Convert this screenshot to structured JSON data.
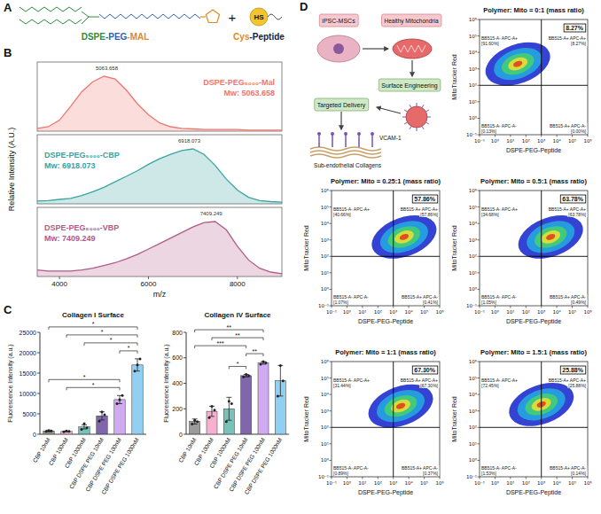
{
  "panel_labels": [
    "A",
    "B",
    "C",
    "D"
  ],
  "scheme_a": {
    "reagent_parts": [
      "DSPE",
      "-PEG",
      "-MAL"
    ],
    "plus": "+",
    "peptide_parts": [
      "Cys",
      "-Peptide"
    ],
    "thiol": "HS"
  },
  "diagram_d": {
    "cell": "iPSC-MSCs",
    "organelle": "Healthy Mitochondria",
    "engineering": "Surface Engineering",
    "delivery": "Targeted Delivery",
    "receptor": "VCAM-1",
    "substrate": "Sub-endothelial Collagens"
  },
  "chart_data": [
    {
      "type": "line",
      "x_label": "m/z",
      "y_label": "Relative Intensity (A.U.)",
      "xlim": [
        3500,
        9000
      ],
      "xticks": [
        4000,
        6000,
        8000
      ],
      "ylim": [
        0,
        1
      ],
      "tick_labels": "x",
      "x": [
        3500,
        3750,
        4000,
        4250,
        4500,
        4750,
        5000,
        5250,
        5500,
        5750,
        6000,
        6250,
        6500,
        6750,
        7000,
        7250,
        7500,
        7750,
        8000,
        8250,
        8500,
        8750,
        9000
      ],
      "series": [
        {
          "name": "DSPE-PEG₅₀₀₀-Mal",
          "color": "#f0766e",
          "mw_label": "Mw: 5063.658",
          "peak": 5063.658,
          "values": [
            0.05,
            0.08,
            0.2,
            0.45,
            0.72,
            0.9,
            1.0,
            0.95,
            0.75,
            0.5,
            0.3,
            0.15,
            0.08,
            0.05,
            0.04,
            0.03,
            0.03,
            0.03,
            0.03,
            0.02,
            0.02,
            0.02,
            0.02
          ]
        },
        {
          "name": "DSPE-PEG₅₀₀₀-CBP",
          "color": "#3aa3a3",
          "mw_label": "Mw: 6918.073",
          "peak": 6918.073,
          "values": [
            0.05,
            0.06,
            0.08,
            0.1,
            0.15,
            0.22,
            0.3,
            0.4,
            0.5,
            0.6,
            0.72,
            0.82,
            0.9,
            0.97,
            1.0,
            0.9,
            0.7,
            0.45,
            0.25,
            0.12,
            0.06,
            0.04,
            0.03
          ]
        },
        {
          "name": "DSPE-PEG₅₀₀₀-VBP",
          "color": "#b05a8a",
          "mw_label": "Mw: 7409.249",
          "peak": 7409.249,
          "values": [
            0.12,
            0.1,
            0.1,
            0.1,
            0.12,
            0.15,
            0.2,
            0.25,
            0.32,
            0.4,
            0.5,
            0.6,
            0.7,
            0.8,
            0.9,
            0.98,
            1.0,
            0.85,
            0.55,
            0.3,
            0.15,
            0.08,
            0.05
          ]
        }
      ]
    },
    {
      "type": "bar",
      "title": "Collagen I Surface",
      "y_label": "Fluorescence Intensity (a.u.)",
      "categories": [
        "CBP 10nM",
        "CBP 100nM",
        "CBP 1000nM",
        "CBP DSPE PEG 10nM",
        "CBP DSPE PEG 100nM",
        "CBP DSPE PEG 1000nM"
      ],
      "values": [
        800,
        700,
        1800,
        4500,
        8500,
        17000
      ],
      "errors": [
        200,
        100,
        500,
        1000,
        1000,
        1500
      ],
      "points": [
        [
          700,
          900,
          800
        ],
        [
          600,
          800,
          700
        ],
        [
          1200,
          2600,
          1600
        ],
        [
          3200,
          5500,
          4800
        ],
        [
          7500,
          8500,
          9500
        ],
        [
          15500,
          17000,
          18500
        ]
      ],
      "colors": [
        "#8a8a8a",
        "#f4a3c8",
        "#5fb8b0",
        "#6a4c9c",
        "#c89cf0",
        "#7ec8f0"
      ],
      "ylim": [
        0,
        25000
      ],
      "yticks": [
        0,
        5000,
        10000,
        15000,
        20000,
        25000
      ],
      "significance": [
        {
          "from": "CBP 100nM",
          "to": "CBP DSPE PEG 100nM",
          "label": "*"
        },
        {
          "from": "CBP 10nM",
          "to": "CBP DSPE PEG 100nM",
          "label": "*"
        },
        {
          "from": "CBP DSPE PEG 100nM",
          "to": "CBP DSPE PEG 1000nM",
          "label": "*"
        },
        {
          "from": "CBP 1000nM",
          "to": "CBP DSPE PEG 1000nM",
          "label": "*"
        },
        {
          "from": "CBP 100nM",
          "to": "CBP DSPE PEG 1000nM",
          "label": "*"
        },
        {
          "from": "CBP 10nM",
          "to": "CBP DSPE PEG 1000nM",
          "label": "*"
        }
      ]
    },
    {
      "type": "bar",
      "title": "Collagen IV Surface",
      "y_label": "Fluorescence Intensity (a.u.)",
      "categories": [
        "CBP 10nM",
        "CBP 100nM",
        "CBP 1000nM",
        "CBP DSPE PEG 10nM",
        "CBP DSPE PEG 100nM",
        "CBP DSPE PEG 1000nM"
      ],
      "values": [
        100,
        180,
        200,
        460,
        560,
        420
      ],
      "errors": [
        20,
        40,
        90,
        10,
        10,
        120
      ],
      "points": [
        [
          80,
          110,
          100
        ],
        [
          130,
          220,
          190
        ],
        [
          100,
          260,
          240
        ],
        [
          450,
          470,
          460
        ],
        [
          550,
          570,
          560
        ],
        [
          300,
          540,
          420
        ]
      ],
      "colors": [
        "#8a8a8a",
        "#f4a3c8",
        "#5fb8b0",
        "#6a4c9c",
        "#c89cf0",
        "#7ec8f0"
      ],
      "ylim": [
        0,
        800
      ],
      "yticks": [
        0,
        200,
        400,
        600,
        800
      ],
      "significance": [
        {
          "from": "CBP 1000nM",
          "to": "CBP DSPE PEG 10nM",
          "label": "*"
        },
        {
          "from": "CBP DSPE PEG 10nM",
          "to": "CBP DSPE PEG 100nM",
          "label": "**"
        },
        {
          "from": "CBP 10nM",
          "to": "CBP DSPE PEG 10nM",
          "label": "***"
        },
        {
          "from": "CBP 100nM",
          "to": "CBP DSPE PEG 100nM",
          "label": "**"
        },
        {
          "from": "CBP 10nM",
          "to": "CBP DSPE PEG 100nM",
          "label": "**"
        }
      ]
    },
    {
      "type": "scatter",
      "title": "Polymer: Mito = 0:1 (mass ratio)",
      "x_label": "DSPE-PEG-Peptide",
      "y_label": "MitoTracker Red",
      "log": true,
      "xlim": [
        0.1,
        1000000
      ],
      "ylim": [
        0.1,
        1000000
      ],
      "xticks": [
        {
          "value": 0.1,
          "label": "10⁻¹"
        },
        {
          "value": 1,
          "label": "10⁰"
        },
        {
          "value": 10,
          "label": "10¹"
        },
        {
          "value": 100,
          "label": "10²"
        },
        {
          "value": 1000,
          "label": "10³"
        },
        {
          "value": 10000,
          "label": "10⁴"
        },
        {
          "value": 100000,
          "label": "10⁵"
        },
        {
          "value": 1000000,
          "label": "10⁶"
        }
      ],
      "yticks": [
        {
          "value": 0.1,
          "label": "10⁻¹"
        },
        {
          "value": 1,
          "label": "10⁰"
        },
        {
          "value": 10,
          "label": "10¹"
        },
        {
          "value": 100,
          "label": "10²"
        },
        {
          "value": 1000,
          "label": "10³"
        },
        {
          "value": 10000,
          "label": "10⁴"
        },
        {
          "value": 100000,
          "label": "10⁵"
        },
        {
          "value": 1000000,
          "label": "10⁶"
        }
      ],
      "gate": {
        "x": 1000,
        "y": 100
      },
      "population": {
        "x": 30,
        "y": 2000
      },
      "quadrants": [
        {
          "label": "BB515-A- APC-A+",
          "percent": "[91.60%]"
        },
        {
          "label": "BB515-A+ APC-A+",
          "percent": "[8.27%]"
        },
        {
          "label": "BB515-A- APC-A-",
          "percent": "[0.13%]"
        },
        {
          "label": "BB515-A+ APC-A-",
          "percent": "[0.00%]"
        }
      ],
      "highlight": "8.27%"
    },
    {
      "type": "scatter",
      "title": "Polymer: Mito = 0.25:1 (mass ratio)",
      "x_label": "DSPE-PEG-Peptide",
      "y_label": "MitoTracker Red",
      "log": true,
      "xlim": [
        0.1,
        1000000
      ],
      "ylim": [
        0.1,
        1000000
      ],
      "xticks": [
        {
          "value": 0.1,
          "label": "10⁻¹"
        },
        {
          "value": 1,
          "label": "10⁰"
        },
        {
          "value": 10,
          "label": "10¹"
        },
        {
          "value": 100,
          "label": "10²"
        },
        {
          "value": 1000,
          "label": "10³"
        },
        {
          "value": 10000,
          "label": "10⁴"
        },
        {
          "value": 100000,
          "label": "10⁵"
        },
        {
          "value": 1000000,
          "label": "10⁶"
        }
      ],
      "yticks": [
        {
          "value": 0.1,
          "label": "10⁻¹"
        },
        {
          "value": 1,
          "label": "10⁰"
        },
        {
          "value": 10,
          "label": "10¹"
        },
        {
          "value": 100,
          "label": "10²"
        },
        {
          "value": 1000,
          "label": "10³"
        },
        {
          "value": 10000,
          "label": "10⁴"
        },
        {
          "value": 100000,
          "label": "10⁵"
        },
        {
          "value": 1000000,
          "label": "10⁶"
        }
      ],
      "gate": {
        "x": 1000,
        "y": 100
      },
      "population": {
        "x": 5000,
        "y": 1500
      },
      "quadrants": [
        {
          "label": "BB515-A- APC-A+",
          "percent": "[40.66%]"
        },
        {
          "label": "BB515-A+ APC-A+",
          "percent": "[57.86%]"
        },
        {
          "label": "BB515-A- APC-A-",
          "percent": "[1.07%]"
        },
        {
          "label": "BB515-A+ APC-A-",
          "percent": "[0.41%]"
        }
      ],
      "highlight": "57.86%"
    },
    {
      "type": "scatter",
      "title": "Polymer: Mito = 0.5:1 (mass ratio)",
      "x_label": "DSPE-PEG-Peptide",
      "y_label": "MitoTracker Red",
      "log": true,
      "xlim": [
        0.1,
        1000000
      ],
      "ylim": [
        0.1,
        1000000
      ],
      "xticks": [
        {
          "value": 0.1,
          "label": "10⁻¹"
        },
        {
          "value": 1,
          "label": "10⁰"
        },
        {
          "value": 10,
          "label": "10¹"
        },
        {
          "value": 100,
          "label": "10²"
        },
        {
          "value": 1000,
          "label": "10³"
        },
        {
          "value": 10000,
          "label": "10⁴"
        },
        {
          "value": 100000,
          "label": "10⁵"
        },
        {
          "value": 1000000,
          "label": "10⁶"
        }
      ],
      "yticks": [
        {
          "value": 0.1,
          "label": "10⁻¹"
        },
        {
          "value": 1,
          "label": "10⁰"
        },
        {
          "value": 10,
          "label": "10¹"
        },
        {
          "value": 100,
          "label": "10²"
        },
        {
          "value": 1000,
          "label": "10³"
        },
        {
          "value": 10000,
          "label": "10⁴"
        },
        {
          "value": 100000,
          "label": "10⁵"
        },
        {
          "value": 1000000,
          "label": "10⁶"
        }
      ],
      "gate": {
        "x": 1000,
        "y": 100
      },
      "population": {
        "x": 4000,
        "y": 1500
      },
      "quadrants": [
        {
          "label": "BB515-A- APC-A+",
          "percent": "[34.68%]"
        },
        {
          "label": "BB515-A+ APC-A+",
          "percent": "[63.78%]"
        },
        {
          "label": "BB515-A- APC-A-",
          "percent": "[1.05%]"
        },
        {
          "label": "BB515-A+ APC-A-",
          "percent": "[0.49%]"
        }
      ],
      "highlight": "63.78%"
    },
    {
      "type": "scatter",
      "title": "Polymer: Mito = 1:1 (mass ratio)",
      "x_label": "DSPE-PEG-Peptide",
      "y_label": "MitoTracker Red",
      "log": true,
      "xlim": [
        0.1,
        1000000
      ],
      "ylim": [
        0.1,
        1000000
      ],
      "xticks": [
        {
          "value": 0.1,
          "label": "10⁻¹"
        },
        {
          "value": 1,
          "label": "10⁰"
        },
        {
          "value": 10,
          "label": "10¹"
        },
        {
          "value": 100,
          "label": "10²"
        },
        {
          "value": 1000,
          "label": "10³"
        },
        {
          "value": 10000,
          "label": "10⁴"
        },
        {
          "value": 100000,
          "label": "10⁵"
        },
        {
          "value": 1000000,
          "label": "10⁶"
        }
      ],
      "yticks": [
        {
          "value": 0.1,
          "label": "10⁻¹"
        },
        {
          "value": 1,
          "label": "10⁰"
        },
        {
          "value": 10,
          "label": "10¹"
        },
        {
          "value": 100,
          "label": "10²"
        },
        {
          "value": 1000,
          "label": "10³"
        },
        {
          "value": 10000,
          "label": "10⁴"
        },
        {
          "value": 100000,
          "label": "10⁵"
        },
        {
          "value": 1000000,
          "label": "10⁶"
        }
      ],
      "gate": {
        "x": 1000,
        "y": 100
      },
      "population": {
        "x": 3000,
        "y": 2000
      },
      "quadrants": [
        {
          "label": "BB515-A- APC-A+",
          "percent": "[31.44%]"
        },
        {
          "label": "BB515-A+ APC-A+",
          "percent": "[67.30%]"
        },
        {
          "label": "BB515-A- APC-A-",
          "percent": "[0.89%]"
        },
        {
          "label": "BB515-A+ APC-A-",
          "percent": "[0.37%]"
        }
      ],
      "highlight": "67.30%"
    },
    {
      "type": "scatter",
      "title": "Polymer: Mito = 1.5:1 (mass ratio)",
      "x_label": "DSPE-PEG-Peptide",
      "y_label": "MitoTracker Red",
      "log": true,
      "xlim": [
        0.1,
        1000000
      ],
      "ylim": [
        0.1,
        1000000
      ],
      "xticks": [
        {
          "value": 0.1,
          "label": "10⁻¹"
        },
        {
          "value": 1,
          "label": "10⁰"
        },
        {
          "value": 10,
          "label": "10¹"
        },
        {
          "value": 100,
          "label": "10²"
        },
        {
          "value": 1000,
          "label": "10³"
        },
        {
          "value": 10000,
          "label": "10⁴"
        },
        {
          "value": 100000,
          "label": "10⁵"
        },
        {
          "value": 1000000,
          "label": "10⁶"
        }
      ],
      "yticks": [
        {
          "value": 0.1,
          "label": "10⁻¹"
        },
        {
          "value": 1,
          "label": "10⁰"
        },
        {
          "value": 10,
          "label": "10¹"
        },
        {
          "value": 100,
          "label": "10²"
        },
        {
          "value": 1000,
          "label": "10³"
        },
        {
          "value": 10000,
          "label": "10⁴"
        },
        {
          "value": 100000,
          "label": "10⁵"
        },
        {
          "value": 1000000,
          "label": "10⁶"
        }
      ],
      "gate": {
        "x": 1000,
        "y": 100
      },
      "population": {
        "x": 1000,
        "y": 2500
      },
      "quadrants": [
        {
          "label": "BB515-A- APC-A+",
          "percent": "[72.45%]"
        },
        {
          "label": "BB515-A+ APC-A+",
          "percent": "[25.88%]"
        },
        {
          "label": "BB515-A- APC-A-",
          "percent": "[1.53%]"
        },
        {
          "label": "BB515-A+ APC-A-",
          "percent": "[0.14%]"
        }
      ],
      "highlight": "25.88%"
    }
  ]
}
